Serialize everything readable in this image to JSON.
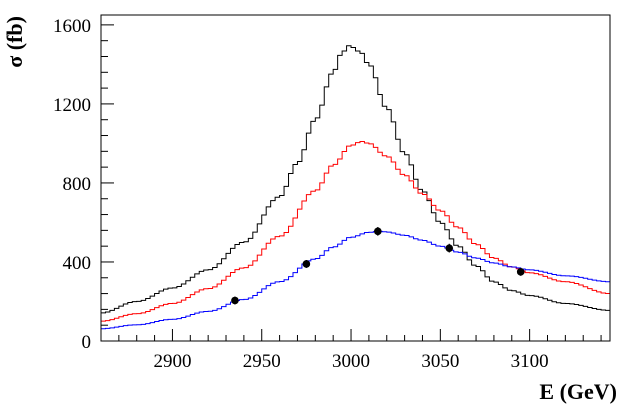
{
  "chart_data": {
    "type": "line",
    "title": "",
    "xlabel": "E (GeV)",
    "ylabel": "σ (fb)",
    "xlim": [
      2860,
      3145
    ],
    "ylim": [
      0,
      1650
    ],
    "grid": false,
    "legend": "none",
    "x_ticks": [
      2900,
      2950,
      3000,
      3050,
      3100
    ],
    "y_ticks": [
      0,
      400,
      800,
      1200,
      1600
    ],
    "series": [
      {
        "color": "#000000",
        "style": "step",
        "peak_x": 2999,
        "peak_y": 1495,
        "x": [
          2860,
          2880,
          2900,
          2920,
          2940,
          2960,
          2970,
          2980,
          2990,
          2995,
          2999,
          3005,
          3010,
          3020,
          3030,
          3040,
          3050,
          3060,
          3070,
          3080,
          3090,
          3100,
          3120,
          3145
        ],
        "y": [
          142,
          200,
          268,
          360,
          500,
          730,
          900,
          1120,
          1360,
          1460,
          1495,
          1465,
          1400,
          1180,
          950,
          760,
          600,
          480,
          380,
          300,
          255,
          230,
          190,
          155
        ]
      },
      {
        "color": "#ff0000",
        "style": "step",
        "peak_x": 3006,
        "peak_y": 1010,
        "x": [
          2860,
          2880,
          2900,
          2920,
          2940,
          2960,
          2980,
          2990,
          3000,
          3006,
          3010,
          3020,
          3030,
          3040,
          3050,
          3060,
          3070,
          3080,
          3090,
          3100,
          3120,
          3145
        ],
        "y": [
          100,
          138,
          190,
          265,
          370,
          530,
          760,
          890,
          990,
          1010,
          1000,
          935,
          840,
          745,
          660,
          575,
          490,
          420,
          375,
          345,
          300,
          240
        ]
      },
      {
        "color": "#0000ff",
        "style": "step",
        "peak_x": 3016,
        "peak_y": 555,
        "x": [
          2860,
          2880,
          2900,
          2920,
          2940,
          2960,
          2980,
          2990,
          3000,
          3010,
          3016,
          3020,
          3030,
          3040,
          3050,
          3060,
          3070,
          3080,
          3090,
          3100,
          3120,
          3145
        ],
        "y": [
          62,
          82,
          110,
          150,
          210,
          300,
          415,
          475,
          525,
          550,
          555,
          552,
          535,
          510,
          480,
          450,
          420,
          395,
          375,
          360,
          330,
          300
        ]
      }
    ],
    "points": {
      "color": "#000000",
      "x": [
        2935,
        2975,
        3015,
        3055,
        3095
      ],
      "y": [
        205,
        390,
        555,
        470,
        350
      ],
      "yerr": [
        20,
        20,
        22,
        22,
        20
      ]
    }
  }
}
